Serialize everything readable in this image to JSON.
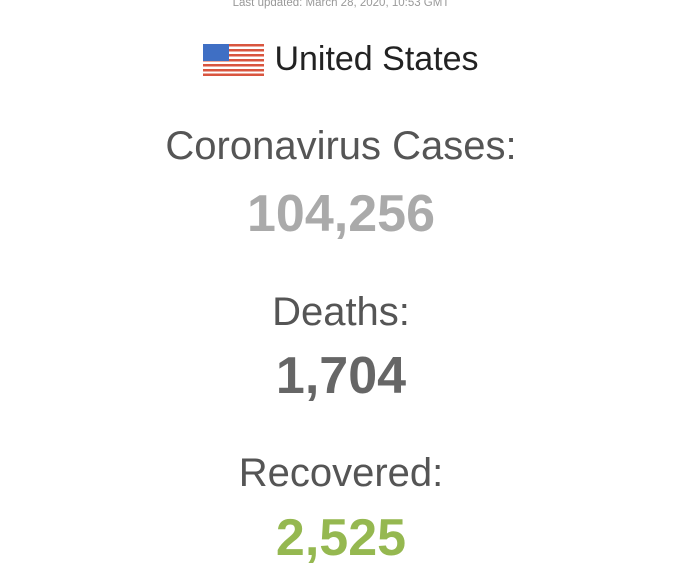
{
  "last_updated": "Last updated: March 28, 2020, 10:53 GMT",
  "country": {
    "name": "United States",
    "flag_icon": "us-flag-icon"
  },
  "stats": {
    "cases": {
      "label": "Coronavirus Cases:",
      "value": "104,256",
      "color": "#aaaaaa"
    },
    "deaths": {
      "label": "Deaths:",
      "value": "1,704",
      "color": "#666666"
    },
    "recovered": {
      "label": "Recovered:",
      "value": "2,525",
      "color": "#95b850"
    }
  }
}
